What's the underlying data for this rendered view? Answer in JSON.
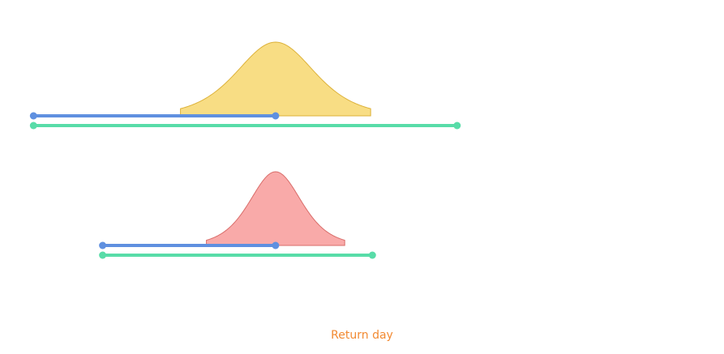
{
  "chart_data": {
    "type": "area",
    "title": "",
    "xlabel": "Return day",
    "ylabel": "",
    "grid": false,
    "legend": "none",
    "x_range": [
      -150,
      250
    ],
    "series": [
      {
        "color": "#f8dd84",
        "stroke": "#ddb23a",
        "distribution": {
          "center": 0,
          "scale": 15,
          "from": -55,
          "to": 55,
          "peak_height": 1
        },
        "ranges": [
          {
            "start": -140,
            "end": 0,
            "color": "#5f90e0"
          },
          {
            "start": -140,
            "end": 105,
            "color": "#58dca8"
          }
        ]
      },
      {
        "color": "#f9aaa9",
        "stroke": "#d96d6a",
        "distribution": {
          "center": 0,
          "scale": 10,
          "from": -40,
          "to": 40,
          "peak_height": 1
        },
        "ranges": [
          {
            "start": -100,
            "end": 0,
            "color": "#5f90e0"
          },
          {
            "start": -100,
            "end": 56,
            "color": "#58dca8"
          }
        ]
      }
    ],
    "axis_label_color": "#f28a32"
  }
}
